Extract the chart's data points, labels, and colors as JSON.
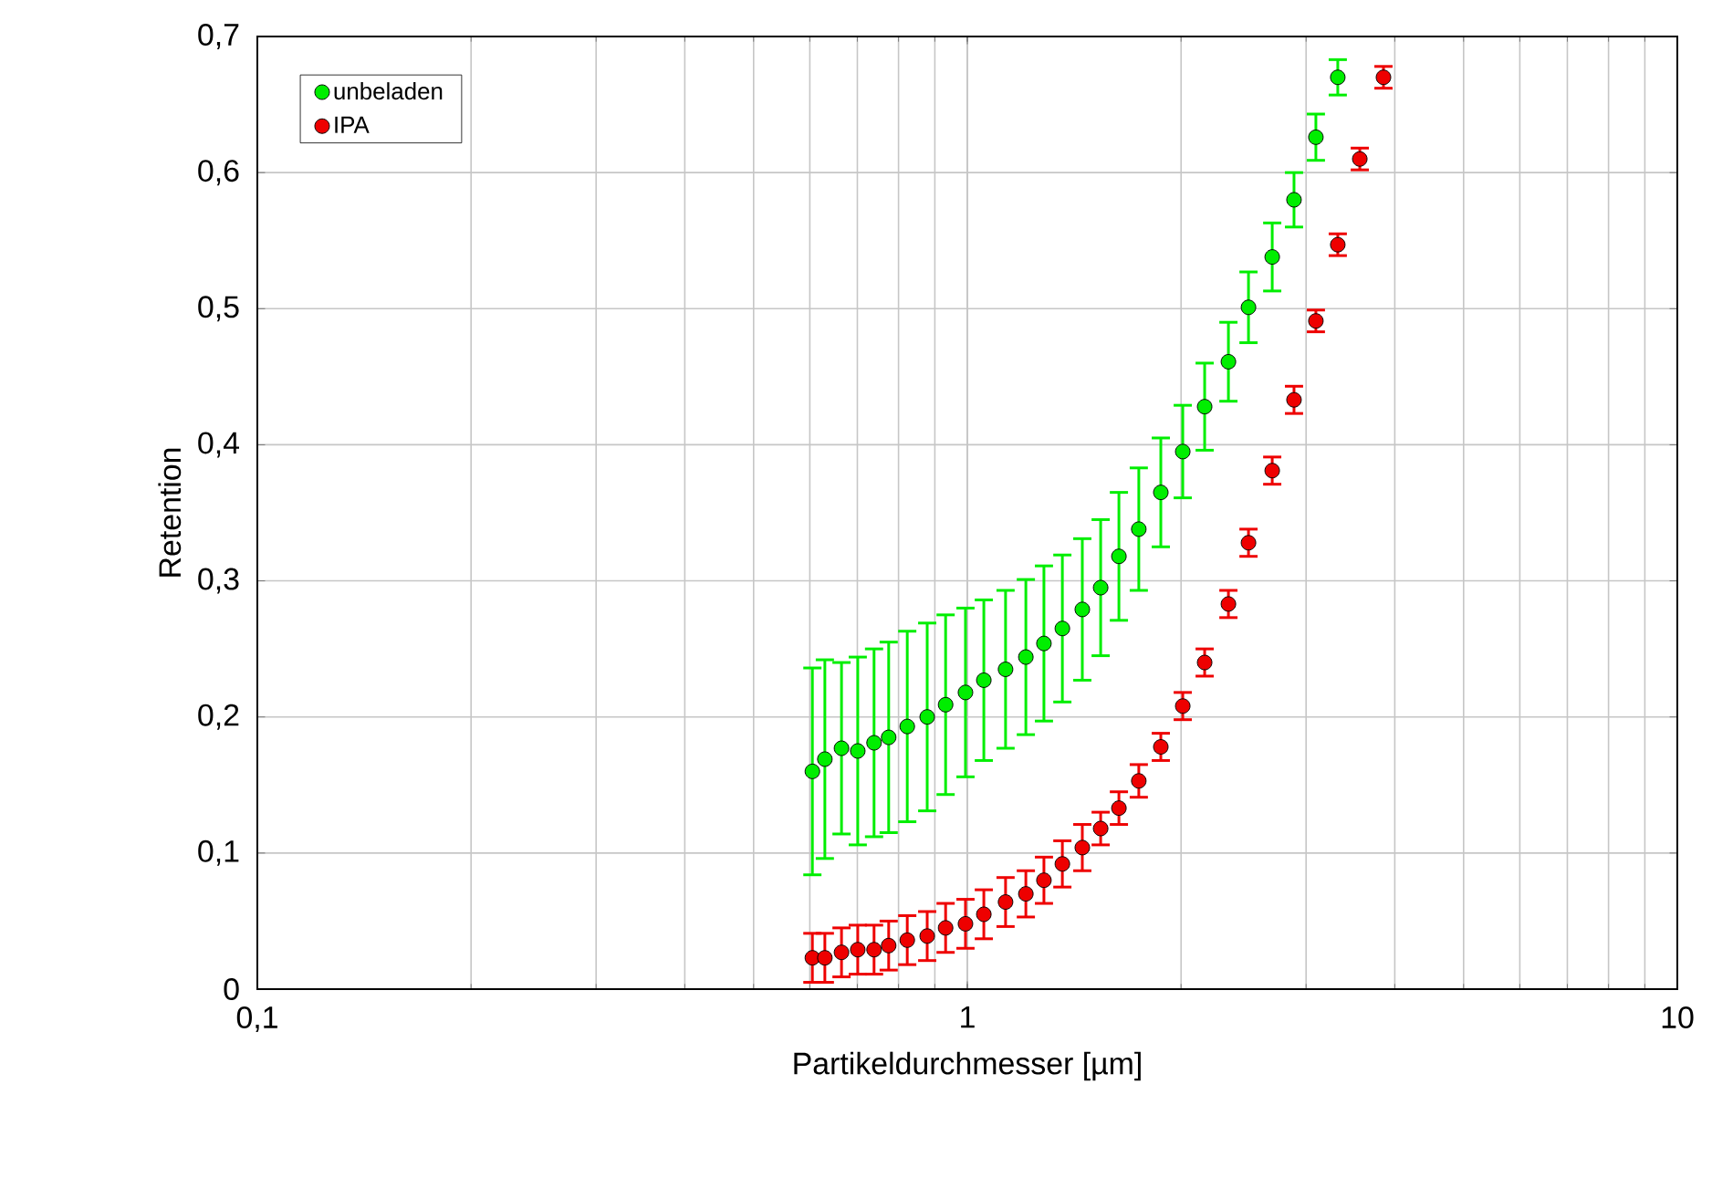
{
  "chart_data": {
    "type": "scatter",
    "xlabel": "Partikeldurchmesser [µm]",
    "ylabel": "Retention",
    "x": [
      0.605,
      0.63,
      0.665,
      0.701,
      0.739,
      0.775,
      0.823,
      0.878,
      0.932,
      0.994,
      1.055,
      1.132,
      1.209,
      1.282,
      1.361,
      1.452,
      1.541,
      1.635,
      1.744,
      1.873,
      2.011,
      2.159,
      2.332,
      2.489,
      2.688,
      2.885,
      3.097,
      3.325,
      3.571,
      3.856
    ],
    "series": [
      {
        "name": "unbeladen",
        "color": "#00ee00",
        "values": [
          0.16,
          0.169,
          0.177,
          0.175,
          0.181,
          0.185,
          0.193,
          0.2,
          0.209,
          0.218,
          0.227,
          0.235,
          0.244,
          0.254,
          0.265,
          0.279,
          0.295,
          0.318,
          0.338,
          0.365,
          0.395,
          0.428,
          0.461,
          0.501,
          0.538,
          0.58,
          0.626,
          0.67,
          null,
          null
        ],
        "errors": [
          0.076,
          0.073,
          0.063,
          0.069,
          0.069,
          0.07,
          0.07,
          0.069,
          0.066,
          0.062,
          0.059,
          0.058,
          0.057,
          0.057,
          0.054,
          0.052,
          0.05,
          0.047,
          0.045,
          0.04,
          0.034,
          0.032,
          0.029,
          0.026,
          0.025,
          0.02,
          0.017,
          0.013,
          null,
          null
        ]
      },
      {
        "name": "IPA",
        "color": "#ee0000",
        "values": [
          0.023,
          0.023,
          0.027,
          0.029,
          0.029,
          0.032,
          0.036,
          0.039,
          0.045,
          0.048,
          0.055,
          0.064,
          0.07,
          0.08,
          0.092,
          0.104,
          0.118,
          0.133,
          0.153,
          0.178,
          0.208,
          0.24,
          0.283,
          0.328,
          0.381,
          0.433,
          0.491,
          0.547,
          0.61,
          0.67
        ],
        "errors": [
          0.018,
          0.018,
          0.018,
          0.018,
          0.018,
          0.018,
          0.018,
          0.018,
          0.018,
          0.018,
          0.018,
          0.018,
          0.017,
          0.017,
          0.017,
          0.017,
          0.012,
          0.012,
          0.012,
          0.01,
          0.01,
          0.01,
          0.01,
          0.01,
          0.01,
          0.01,
          0.008,
          0.008,
          0.008,
          0.008
        ]
      }
    ],
    "xlim": [
      0.1,
      10
    ],
    "xticks": [
      {
        "value": 0.1,
        "label": "0,1"
      },
      1,
      10
    ],
    "ylim": [
      0,
      0.7
    ],
    "yticks": [
      0,
      {
        "value": 0.1,
        "label": "0,1"
      },
      {
        "value": 0.2,
        "label": "0,2"
      },
      {
        "value": 0.3,
        "label": "0,3"
      },
      {
        "value": 0.4,
        "label": "0,4"
      },
      {
        "value": 0.5,
        "label": "0,5"
      },
      {
        "value": 0.6,
        "label": "0,6"
      },
      {
        "value": 0.7,
        "label": "0,7"
      }
    ],
    "log": "x",
    "grid": true,
    "legend": "top left",
    "marker": "circle"
  }
}
